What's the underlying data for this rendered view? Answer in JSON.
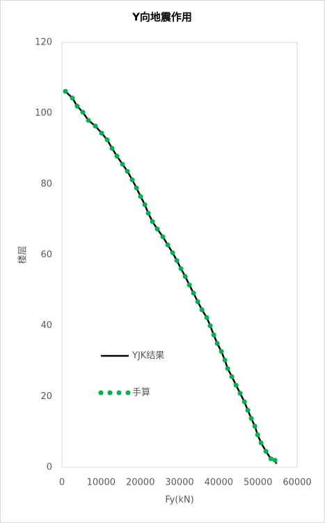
{
  "chart_data": {
    "type": "line",
    "title": "Y向地震作用",
    "x_label": "Fy(kN)",
    "y_label": "楼层",
    "xlim": [
      0,
      60000
    ],
    "xticks": [
      0,
      10000,
      20000,
      30000,
      40000,
      50000,
      60000
    ],
    "ylim": [
      0,
      120
    ],
    "yticks": [
      0,
      20,
      40,
      60,
      80,
      100,
      120
    ],
    "grid": false,
    "legend": "inside-left",
    "series": [
      {
        "name": "YJK结果",
        "color": "#000000",
        "style": "line",
        "x": [
          890,
          2660,
          3900,
          5330,
          6750,
          8530,
          10120,
          11550,
          12790,
          14030,
          15450,
          16700,
          17940,
          19010,
          20070,
          21140,
          22020,
          23090,
          24330,
          25750,
          27000,
          28240,
          29310,
          30370,
          31440,
          32500,
          33570,
          34640,
          35700,
          36940,
          37830,
          38720,
          39610,
          40670,
          41560,
          42270,
          43340,
          44400,
          45470,
          46540,
          47420,
          48310,
          49200,
          49910,
          50800,
          52040,
          53290,
          54350,
          54700
        ],
        "values": [
          106.2,
          104.3,
          102,
          100.3,
          98,
          96.4,
          94.4,
          92.5,
          90.1,
          87.9,
          85.6,
          83.6,
          81.2,
          78.9,
          76.5,
          74.2,
          71.8,
          69.4,
          67.3,
          65.1,
          62.8,
          60.6,
          58.4,
          56.1,
          53.9,
          51.5,
          49.2,
          46.8,
          44.5,
          42.3,
          40,
          37.4,
          35,
          32.7,
          30.3,
          27.9,
          25.6,
          23.2,
          20.9,
          18.5,
          16.1,
          13.8,
          11.6,
          9.2,
          6.9,
          4.5,
          2.4,
          2,
          1
        ]
      },
      {
        "name": "手算",
        "color": "#00b050",
        "style": "dots",
        "x": [
          890,
          2660,
          3900,
          5330,
          6750,
          8530,
          10120,
          11550,
          12790,
          14030,
          15450,
          16700,
          17940,
          19010,
          20070,
          21140,
          22020,
          23090,
          24330,
          25750,
          27000,
          28240,
          29310,
          30370,
          31440,
          32500,
          33570,
          34640,
          35700,
          36940,
          37830,
          38720,
          39610,
          40670,
          41560,
          42270,
          43340,
          44400,
          45470,
          46540,
          47420,
          48310,
          49200,
          49910,
          50800,
          52040,
          53290,
          54350
        ],
        "values": [
          106.2,
          104.3,
          102,
          100.3,
          98,
          96.4,
          94.4,
          92.5,
          90.1,
          87.9,
          85.6,
          83.6,
          81.2,
          78.9,
          76.5,
          74.2,
          71.8,
          69.4,
          67.3,
          65.1,
          62.8,
          60.6,
          58.4,
          56.1,
          53.9,
          51.5,
          49.2,
          46.8,
          44.5,
          42.3,
          40,
          37.4,
          35,
          32.7,
          30.3,
          27.9,
          25.6,
          23.2,
          20.9,
          18.5,
          16.1,
          13.8,
          11.6,
          9.2,
          6.9,
          4.5,
          2.4,
          2
        ]
      }
    ]
  }
}
